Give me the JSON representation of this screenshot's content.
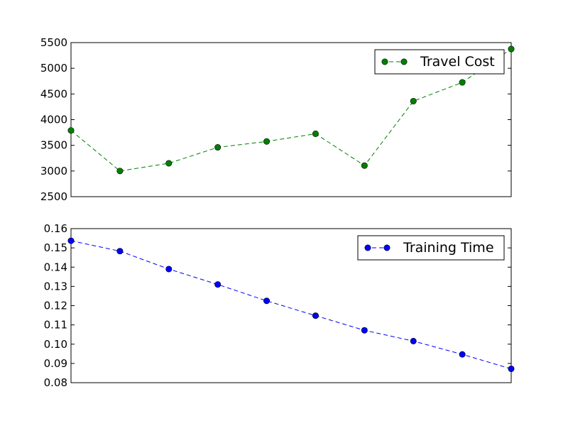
{
  "chart_data": [
    {
      "type": "line",
      "x": [
        0,
        1,
        2,
        3,
        4,
        5,
        6,
        7,
        8,
        9
      ],
      "series": [
        {
          "name": "Travel Cost",
          "values": [
            3790,
            3000,
            3150,
            3460,
            3575,
            3725,
            3105,
            4360,
            4725,
            5375
          ],
          "color": "#007f00",
          "line_style": "dashed",
          "marker": "circle"
        }
      ],
      "ylim": [
        2500,
        5500
      ],
      "yticks": [
        2500,
        3000,
        3500,
        4000,
        4500,
        5000,
        5500
      ],
      "ytick_labels": [
        "2500",
        "3000",
        "3500",
        "4000",
        "4500",
        "5000",
        "5500"
      ],
      "xlabels_visible": false,
      "legend_position": "top-right",
      "grid": false
    },
    {
      "type": "line",
      "x": [
        0,
        1,
        2,
        3,
        4,
        5,
        6,
        7,
        8,
        9
      ],
      "series": [
        {
          "name": "Training Time",
          "values": [
            0.1537,
            0.1483,
            0.139,
            0.131,
            0.1225,
            0.1148,
            0.1072,
            0.1016,
            0.0947,
            0.0872
          ],
          "color": "#0000ff",
          "line_style": "dashed",
          "marker": "circle"
        }
      ],
      "ylim": [
        0.08,
        0.16
      ],
      "yticks": [
        0.08,
        0.09,
        0.1,
        0.11,
        0.12,
        0.13,
        0.14,
        0.15,
        0.16
      ],
      "ytick_labels": [
        "0.08",
        "0.09",
        "0.10",
        "0.11",
        "0.12",
        "0.13",
        "0.14",
        "0.15",
        "0.16"
      ],
      "xlabels_visible": false,
      "legend_position": "top-right",
      "grid": false
    }
  ]
}
